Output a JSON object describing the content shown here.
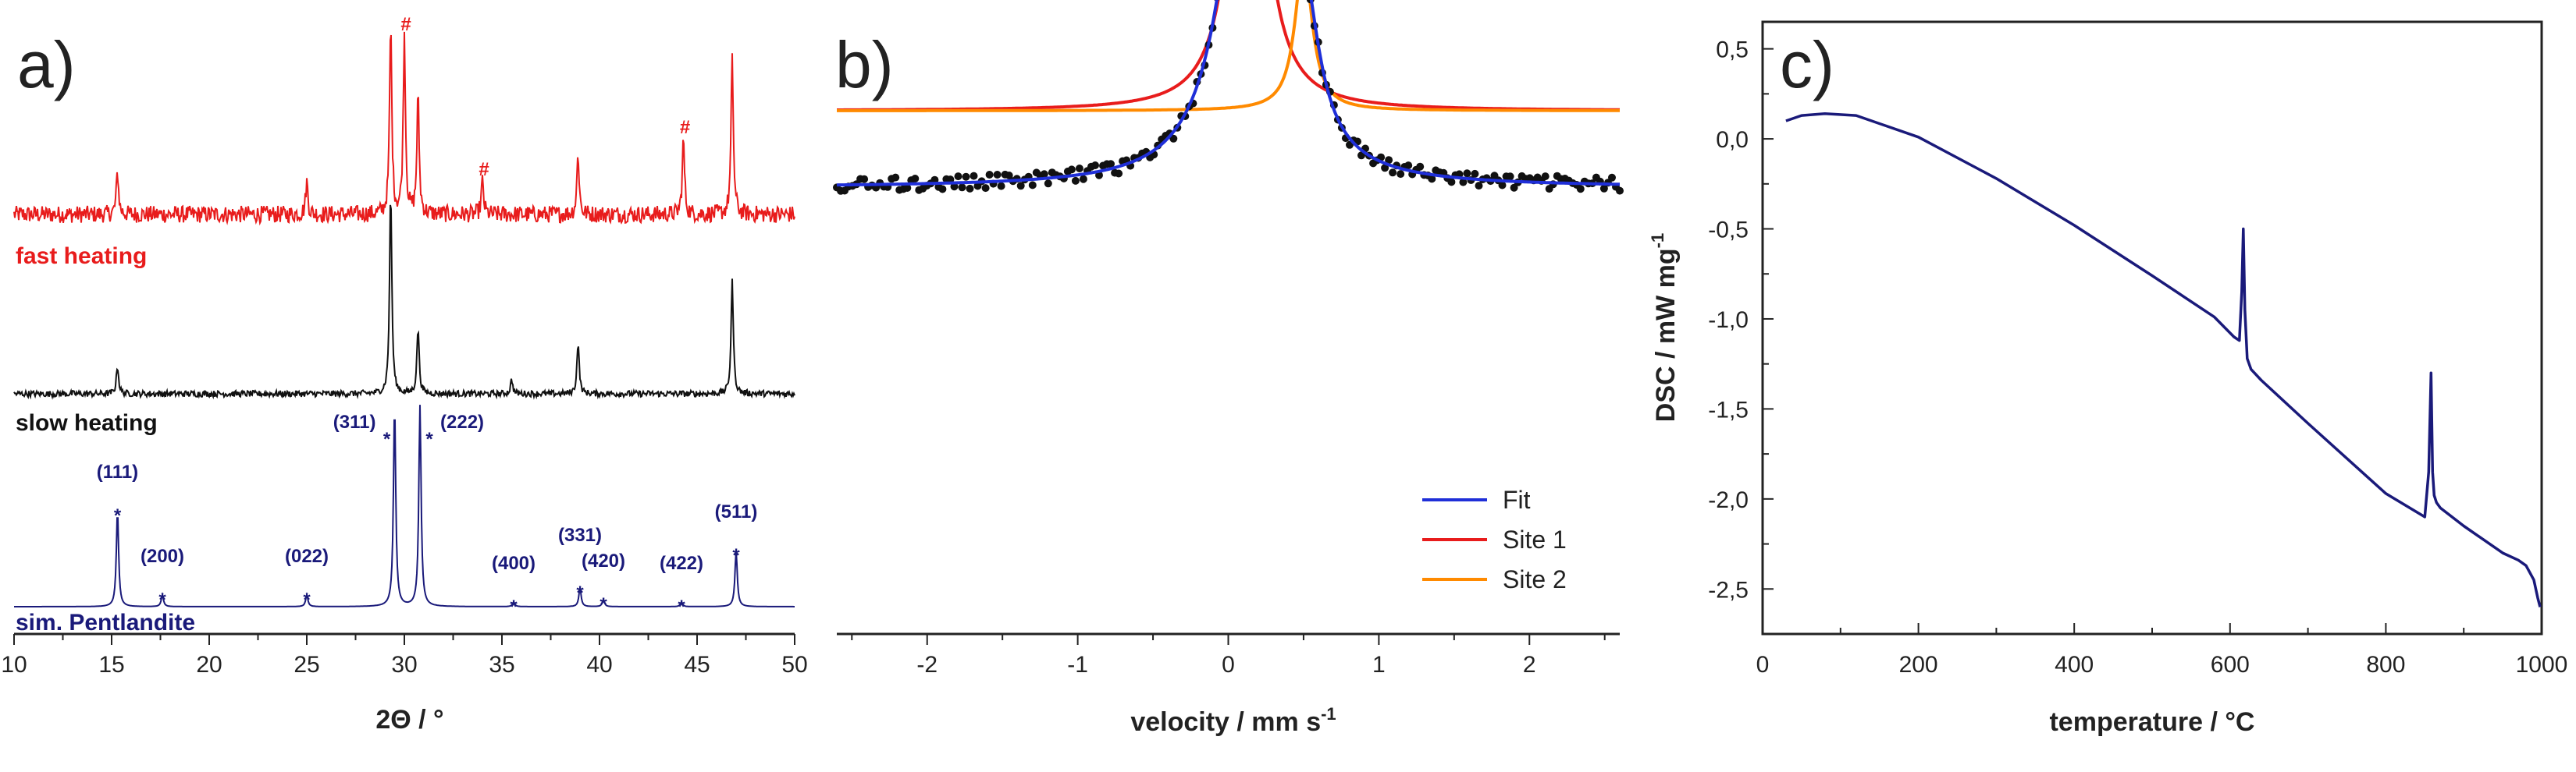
{
  "colors": {
    "red": "#e81c1c",
    "black": "#111111",
    "navy": "#1a1a7a",
    "blue": "#1f2fd8",
    "orange": "#ff8a00",
    "axis": "#222222"
  },
  "chart_data": [
    {
      "panel": "a)",
      "type": "line",
      "xlabel": "2Θ / °",
      "ylabel": "",
      "xlim": [
        10,
        50
      ],
      "xticks": [
        "10",
        "15",
        "20",
        "25",
        "30",
        "35",
        "40",
        "45",
        "50"
      ],
      "series": [
        {
          "name": "fast heating",
          "color": "#e81c1c",
          "peaks": [
            {
              "x": 15.3,
              "h": 0.9
            },
            {
              "x": 25.0,
              "h": 0.7
            },
            {
              "x": 29.3,
              "h": 4.0
            },
            {
              "x": 30.0,
              "h": 3.8
            },
            {
              "x": 30.7,
              "h": 2.5
            },
            {
              "x": 34.0,
              "h": 0.7
            },
            {
              "x": 38.9,
              "h": 1.3
            },
            {
              "x": 44.3,
              "h": 1.6
            },
            {
              "x": 46.8,
              "h": 3.3
            }
          ],
          "markers": [
            {
              "x": 30.0,
              "text": "#"
            },
            {
              "x": 34.0,
              "text": "#"
            },
            {
              "x": 44.3,
              "text": "#"
            }
          ]
        },
        {
          "name": "slow heating",
          "color": "#111111",
          "peaks": [
            {
              "x": 15.3,
              "h": 0.6
            },
            {
              "x": 29.3,
              "h": 4.3
            },
            {
              "x": 30.7,
              "h": 1.4
            },
            {
              "x": 35.5,
              "h": 0.3
            },
            {
              "x": 38.9,
              "h": 1.1
            },
            {
              "x": 46.8,
              "h": 2.4
            }
          ]
        },
        {
          "name": "sim. Pentlandite",
          "color": "#1a1a7a",
          "peaks": [
            {
              "x": 15.3,
              "h": 2.05,
              "hkl": "(111)"
            },
            {
              "x": 17.6,
              "h": 0.25,
              "hkl": "(200)"
            },
            {
              "x": 25.0,
              "h": 0.25,
              "hkl": "(022)"
            },
            {
              "x": 29.5,
              "h": 4.3,
              "hkl": "(311)"
            },
            {
              "x": 30.8,
              "h": 4.3,
              "hkl": "(222)"
            },
            {
              "x": 35.6,
              "h": 0.1,
              "hkl": "(400)"
            },
            {
              "x": 39.0,
              "h": 0.4,
              "hkl": "(331)"
            },
            {
              "x": 40.2,
              "h": 0.15,
              "hkl": "(420)"
            },
            {
              "x": 44.2,
              "h": 0.1,
              "hkl": "(422)"
            },
            {
              "x": 47.0,
              "h": 1.2,
              "hkl": "(511)"
            }
          ]
        }
      ]
    },
    {
      "panel": "b)",
      "type": "line",
      "xlabel": "velocity / mm s",
      "xlabel_sup": "-1",
      "ylabel": "",
      "xlim": [
        -2.6,
        2.6
      ],
      "xticks": [
        "-2",
        "-1",
        "0",
        "1",
        "2"
      ],
      "series": [
        {
          "name": "Fit",
          "color": "#1f2fd8"
        },
        {
          "name": "Site 1",
          "color": "#e81c1c",
          "center": 0.13,
          "hwhm": 0.12,
          "depth": 0.82
        },
        {
          "name": "Site 2",
          "color": "#ff8a00",
          "center": 0.5,
          "hwhm": 0.07,
          "depth": 0.3
        }
      ],
      "baseline": 1.0,
      "legend_position": "bottom-right"
    },
    {
      "panel": "c)",
      "type": "line",
      "xlabel": "temperature / °C",
      "ylabel": "DSC / mW mg",
      "ylabel_sup": "-1",
      "xlim": [
        0,
        1000
      ],
      "ylim": [
        -2.75,
        0.65
      ],
      "xticks": [
        "0",
        "200",
        "400",
        "600",
        "800",
        "1000"
      ],
      "yticks": [
        "0,5",
        "0,0",
        "-0,5",
        "-1,0",
        "-1,5",
        "-2,0",
        "-2,5"
      ],
      "series": [
        {
          "name": "DSC",
          "color": "#1a1a7a",
          "x": [
            30,
            50,
            80,
            120,
            200,
            300,
            400,
            500,
            580,
            605,
            612,
            615,
            617,
            619,
            622,
            627,
            640,
            700,
            800,
            850,
            855,
            858,
            860,
            862,
            865,
            870,
            900,
            950,
            970,
            980,
            990,
            995,
            998
          ],
          "y": [
            0.1,
            0.13,
            0.14,
            0.13,
            0.01,
            -0.22,
            -0.48,
            -0.76,
            -0.99,
            -1.1,
            -1.12,
            -0.85,
            -0.5,
            -0.95,
            -1.22,
            -1.28,
            -1.34,
            -1.58,
            -1.97,
            -2.1,
            -1.85,
            -1.3,
            -1.85,
            -1.98,
            -2.02,
            -2.05,
            -2.15,
            -2.3,
            -2.34,
            -2.37,
            -2.45,
            -2.55,
            -2.6
          ]
        }
      ]
    }
  ]
}
